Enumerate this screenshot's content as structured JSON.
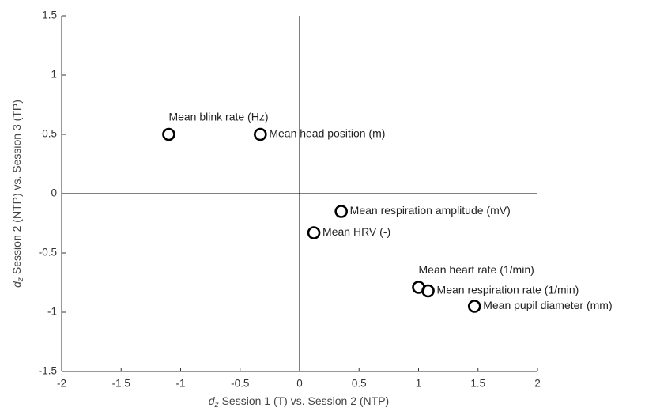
{
  "chart_data": {
    "type": "scatter",
    "xlabel": {
      "symbol": "d",
      "subscript": "z",
      "text": "Session 1 (T) vs. Session 2 (NTP)"
    },
    "ylabel": {
      "symbol": "d",
      "subscript": "z",
      "text": "Session 2 (NTP) vs. Session 3 (TP)"
    },
    "labels": [
      "Mean blink rate (Hz)",
      "Mean head position (m)",
      "Mean respiration amplitude (mV)",
      "Mean HRV (-)",
      "Mean heart rate (1/min)",
      "Mean respiration rate (1/min)",
      "Mean pupil diameter (mm)"
    ],
    "x": [
      -1.1,
      -0.33,
      0.35,
      0.12,
      1.0,
      1.08,
      1.47
    ],
    "values": [
      0.5,
      0.5,
      -0.15,
      -0.33,
      -0.79,
      -0.82,
      -0.95
    ],
    "color": "#000000",
    "xlim": [
      -2,
      2
    ],
    "xticks": [
      -2,
      -1.5,
      -1,
      -0.5,
      0,
      0.5,
      1,
      1.5,
      2
    ],
    "ylim": [
      -1.5,
      1.5
    ],
    "yticks": [
      -1.5,
      -1,
      -0.5,
      0,
      0.5,
      1,
      1.5
    ]
  }
}
